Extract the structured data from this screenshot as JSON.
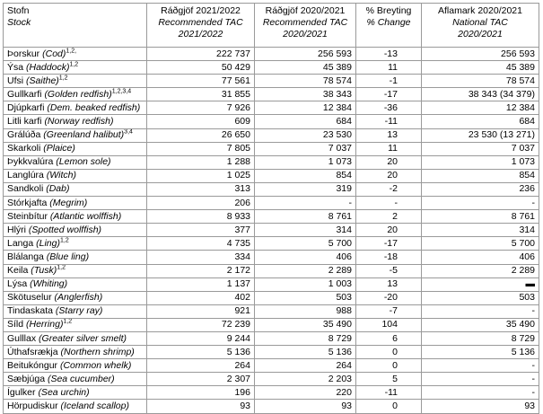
{
  "table": {
    "header": [
      {
        "line1": "Stofn",
        "line2": "Stock"
      },
      {
        "line1": "Ráðgjöf 2021/2022",
        "line2": "Recommended TAC",
        "line3": "2021/2022"
      },
      {
        "line1": "Ráðgjöf 2020/2021",
        "line2": "Recommended TAC",
        "line3": "2020/2021"
      },
      {
        "line1": "% Breyting",
        "line2": "% Change"
      },
      {
        "line1": "Aflamark 2020/2021",
        "line2": "National TAC",
        "line3": "2020/2021"
      }
    ],
    "rows": [
      {
        "name": "Þorskur",
        "english": "(Cod)",
        "sup": "1,2,",
        "cells": [
          "222 737",
          "256 593",
          "-13",
          "256 593"
        ]
      },
      {
        "name": "Ýsa",
        "english": "(Haddock)",
        "sup": "1,2",
        "cells": [
          "50 429",
          "45 389",
          "11",
          "45 389"
        ]
      },
      {
        "name": "Ufsi",
        "english": "(Saithe)",
        "sup": "1,2",
        "cells": [
          "77 561",
          "78 574",
          "-1",
          "78 574"
        ]
      },
      {
        "name": "Gullkarfi",
        "english": "(Golden redfish)",
        "sup": "1,2,3,4",
        "cells": [
          "31 855",
          "38 343",
          "-17",
          "38 343 (34 379)"
        ]
      },
      {
        "name": "Djúpkarfi",
        "english": "(Dem. beaked redfish)",
        "cells": [
          "7 926",
          "12 384",
          "-36",
          "12 384"
        ]
      },
      {
        "name": "Litli karfi",
        "english": "(Norway redfish)",
        "cells": [
          "609",
          "684",
          "-11",
          "684"
        ]
      },
      {
        "name": "Grálúða",
        "english": "(Greenland halibut)",
        "sup": "3,4",
        "cells": [
          "26 650",
          "23 530",
          "13",
          "23 530 (13 271)"
        ]
      },
      {
        "name": "Skarkoli",
        "english": "(Plaice)",
        "cells": [
          "7 805",
          "7 037",
          "11",
          "7 037"
        ]
      },
      {
        "name": "Þykkvalúra",
        "english": "(Lemon sole)",
        "cells": [
          "1 288",
          "1 073",
          "20",
          "1 073"
        ]
      },
      {
        "name": "Langlúra",
        "english": "(Witch)",
        "cells": [
          "1 025",
          "854",
          "20",
          "854"
        ]
      },
      {
        "name": "Sandkoli",
        "english": "(Dab)",
        "cells": [
          "313",
          "319",
          "-2",
          "236"
        ]
      },
      {
        "name": "Stórkjafta",
        "english": "(Megrim)",
        "cells": [
          "206",
          "-",
          "-",
          "-"
        ]
      },
      {
        "name": "Steinbítur",
        "english": "(Atlantic wolffish)",
        "cells": [
          "8 933",
          "8 761",
          "2",
          "8 761"
        ]
      },
      {
        "name": "Hlýri",
        "english": "(Spotted wolffish)",
        "cells": [
          "377",
          "314",
          "20",
          "314"
        ]
      },
      {
        "name": "Langa",
        "english": "(Ling)",
        "sup": "1,2",
        "cells": [
          "4 735",
          "5 700",
          "-17",
          "5 700"
        ]
      },
      {
        "name": "Blálanga",
        "english": "(Blue ling)",
        "cells": [
          "334",
          "406",
          "-18",
          "406"
        ]
      },
      {
        "name": "Keila",
        "english": "(Tusk)",
        "sup": "1,2",
        "cells": [
          "2 172",
          "2 289",
          "-5",
          "2 289"
        ]
      },
      {
        "name": "Lýsa",
        "english": "(Whiting)",
        "cells": [
          "1 137",
          "1 003",
          "13",
          "▬"
        ]
      },
      {
        "name": "Skötuselur",
        "english": "(Anglerfish)",
        "cells": [
          "402",
          "503",
          "-20",
          "503"
        ]
      },
      {
        "name": "Tindaskata",
        "english": "(Starry ray)",
        "cells": [
          "921",
          "988",
          "-7",
          "-"
        ]
      },
      {
        "name": "Síld",
        "english": "(Herring)",
        "sup": "1,2",
        "cells": [
          "72 239",
          "35 490",
          "104",
          "35 490"
        ]
      },
      {
        "name": "Gulllax",
        "english": "(Greater silver smelt)",
        "cells": [
          "9 244",
          "8 729",
          "6",
          "8 729"
        ]
      },
      {
        "name": "Úthafsrækja",
        "english": "(Northern shrimp)",
        "cells": [
          "5 136",
          "5 136",
          "0",
          "5 136"
        ]
      },
      {
        "name": "Beitukóngur",
        "english": "(Common whelk)",
        "cells": [
          "264",
          "264",
          "0",
          "-"
        ]
      },
      {
        "name": "Sæbjúga",
        "english": "(Sea cucumber)",
        "cells": [
          "2 307",
          "2 203",
          "5",
          "-"
        ]
      },
      {
        "name": "Ígulker",
        "english": "(Sea urchin)",
        "cells": [
          "196",
          "220",
          "-11",
          "-"
        ]
      },
      {
        "name": "Hörpudiskur",
        "english": "(Iceland scallop)",
        "cells": [
          "93",
          "93",
          "0",
          "93"
        ]
      }
    ]
  }
}
